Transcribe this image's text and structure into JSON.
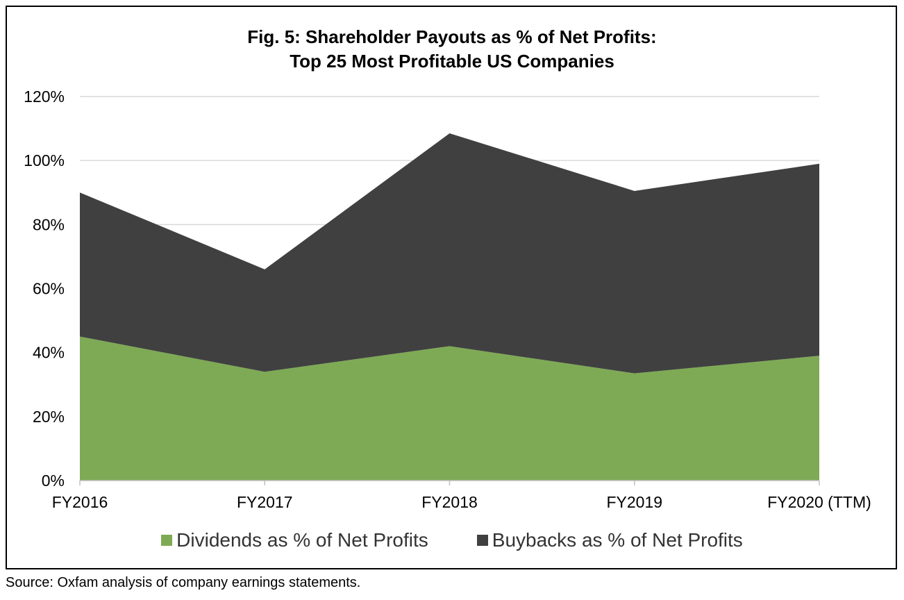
{
  "source_note": "Source: Oxfam analysis of company earnings statements.",
  "colors": {
    "dividends": "#7eaa55",
    "buybacks": "#404040",
    "grid": "#d9d9d9",
    "axis": "#bfbfbf"
  },
  "chart_data": {
    "type": "area",
    "stacked": true,
    "title": [
      "Fig. 5: Shareholder Payouts as % of Net Profits:",
      "Top 25 Most Profitable US Companies"
    ],
    "categories": [
      "FY2016",
      "FY2017",
      "FY2018",
      "FY2019",
      "FY2020 (TTM)"
    ],
    "series": [
      {
        "name": "Dividends as % of Net Profits",
        "values": [
          45,
          34,
          42,
          33.5,
          39
        ]
      },
      {
        "name": "Buybacks as % of Net Profits",
        "values": [
          45,
          32,
          66.5,
          57,
          60
        ]
      }
    ],
    "ylim": [
      0,
      120
    ],
    "yticks": [
      0,
      20,
      40,
      60,
      80,
      100,
      120
    ],
    "ytick_labels": [
      "0%",
      "20%",
      "40%",
      "60%",
      "80%",
      "100%",
      "120%"
    ],
    "grid": true,
    "legend_position": "bottom"
  }
}
